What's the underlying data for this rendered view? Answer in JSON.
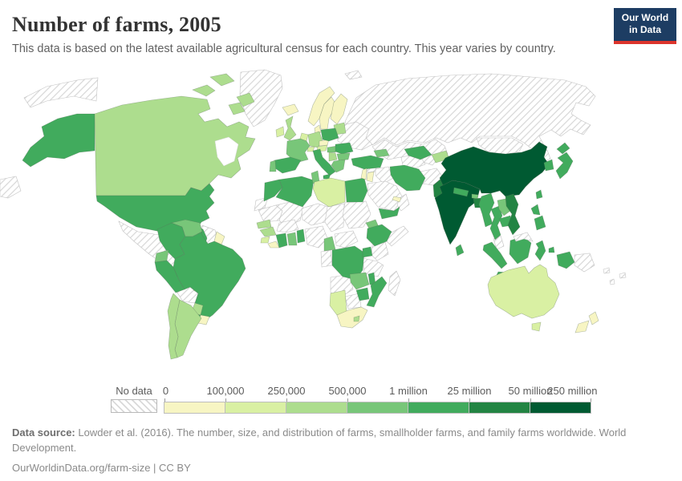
{
  "header": {
    "title": "Number of farms, 2005",
    "subtitle": "This data is based on the latest available agricultural census for each country. This year varies by country.",
    "logo": {
      "line1": "Our World",
      "line2": "in Data",
      "bg_color": "#1d3d63",
      "accent_color": "#dc342c"
    }
  },
  "legend": {
    "no_data_label": "No data",
    "tick_labels": [
      "0",
      "100,000",
      "250,000",
      "500,000",
      "1 million",
      "25 million",
      "50 million",
      "250 million"
    ],
    "bin_colors": [
      "#f7f5c3",
      "#d9f0a3",
      "#addd8e",
      "#78c679",
      "#41ab5d",
      "#238443",
      "#005a32"
    ]
  },
  "footer": {
    "source_label": "Data source:",
    "source_text": " Lowder et al. (2016). The number, size, and distribution of farms, smallholder farms, and family farms worldwide. World Development.",
    "link_text": "OurWorldinData.org/farm-size | CC BY"
  },
  "chart_data": {
    "type": "heatmap",
    "subtype": "choropleth-world-map",
    "title": "Number of farms, 2005",
    "unit": "farms per country",
    "legend_position": "bottom",
    "bins": [
      {
        "range": "0 – 100,000",
        "color": "#f7f5c3"
      },
      {
        "range": "100,000 – 250,000",
        "color": "#d9f0a3"
      },
      {
        "range": "250,000 – 500,000",
        "color": "#addd8e"
      },
      {
        "range": "500,000 – 1 million",
        "color": "#78c679"
      },
      {
        "range": "1 million – 25 million",
        "color": "#41ab5d"
      },
      {
        "range": "25 million – 50 million",
        "color": "#238443"
      },
      {
        "range": "50 million – 250 million",
        "color": "#005a32"
      }
    ],
    "no_data": {
      "label": "No data",
      "style": "diagonal-hatch"
    },
    "regions": {
      "chukotka-wrap": "nodata",
      "left-edge-strip": "nodata",
      "greenland": "nodata",
      "svalbard": "nodata",
      "russia": "nodata",
      "kazakhstan": "nodata",
      "mongolia": "nodata",
      "ukraine-belarus": "nodata",
      "mexico": "nodata",
      "cuba": "nodata",
      "guyana-suriname": "nodata",
      "bolivia": "nodata",
      "western-sahara": "nodata",
      "mauritania": "nodata",
      "mali": "nodata",
      "niger": "nodata",
      "chad": "nodata",
      "sudan": "nodata",
      "somalia": "nodata",
      "burkina-faso": "nodata",
      "nigeria": "nodata",
      "central-african-republic": "nodata",
      "congo-gabon": "nodata",
      "kenya": "nodata",
      "tanzania": "nodata",
      "angola": "nodata",
      "botswana": "nodata",
      "madagascar": "nodata",
      "syria": "nodata",
      "iraq": "nodata",
      "saudi-arabia": "nodata",
      "oman": "nodata",
      "turkmenistan": "nodata",
      "afghanistan": "nodata",
      "north-korea": "nodata",
      "malaysia-peninsula": "nodata",
      "malaysia-borneo": "nodata",
      "papua-new-guinea": "nodata",
      "solomon-islands": "nodata",
      "fiji": "nodata",
      "vanuatu": "nodata",
      "iceland": 0,
      "norway": 0,
      "sweden": 0,
      "finland": 0,
      "denmark": 0,
      "czechia": 0,
      "lebanon-israel": 0,
      "jordan": 0,
      "uae-qatar": 0,
      "uruguay": 0,
      "french-guiana": 0,
      "south-africa": 0,
      "liberia": 0,
      "new-zealand-north": 0,
      "new-zealand-south": 0,
      "ireland": 1,
      "netherlands-belgium": 1,
      "switzerland": 1,
      "austria": 1,
      "sierra-leone": 1,
      "namibia": 1,
      "libya": 1,
      "jamaica": 1,
      "costa-rica": 1,
      "australia": 1,
      "tasmania": 1,
      "canada": 2,
      "arctic-islands-1": 2,
      "arctic-islands-2": 2,
      "arctic-islands-3": 2,
      "arctic-islands-4": 2,
      "united-kingdom": 2,
      "germany": 2,
      "baltics": 2,
      "serbia-balkans": 2,
      "senegal": 2,
      "guinea": 2,
      "honduras": 2,
      "panama": 2,
      "chile": 2,
      "argentina": 2,
      "paraguay": 2,
      "kyrgyz-tajik": 2,
      "lesotho": 2,
      "france": 3,
      "portugal": 3,
      "greece": 3,
      "bulgaria": 3,
      "hungary": 3,
      "tunisia": 3,
      "georgia-azerbaijan": 3,
      "venezuela": 3,
      "ecuador": 3,
      "guatemala": 3,
      "nicaragua": 3,
      "ghana": 3,
      "cameroon": 3,
      "zambia": 3,
      "eritrea": 3,
      "laos": 3,
      "bhutan": 3,
      "alaska": 4,
      "united-states": 4,
      "hispaniola": 4,
      "colombia": 4,
      "peru": 4,
      "brazil": 4,
      "spain": 4,
      "italy": 4,
      "sicily": 4,
      "poland": 4,
      "romania": 4,
      "turkey": 4,
      "morocco": 4,
      "algeria": 4,
      "egypt": 4,
      "ethiopia": 4,
      "togo-benin": 4,
      "ivory-coast": 4,
      "dr-congo": 4,
      "uganda": 4,
      "malawi": 4,
      "mozambique": 4,
      "zimbabwe": 4,
      "yemen": 4,
      "iran": 4,
      "uzbekistan": 4,
      "nepal": 4,
      "sri-lanka": 4,
      "myanmar": 4,
      "thailand": 4,
      "cambodia": 4,
      "japan-hokkaido": 4,
      "japan-honshu": 4,
      "south-korea": 4,
      "taiwan": 4,
      "philippines-luzon": 4,
      "philippines-mindanao": 4,
      "sumatra": 4,
      "java": 4,
      "borneo": 4,
      "sulawesi": 4,
      "moluccas": 4,
      "papua-indonesia": 4,
      "pakistan": 5,
      "bangladesh": 5,
      "vietnam": 5,
      "china": 6,
      "india": 6
    }
  }
}
